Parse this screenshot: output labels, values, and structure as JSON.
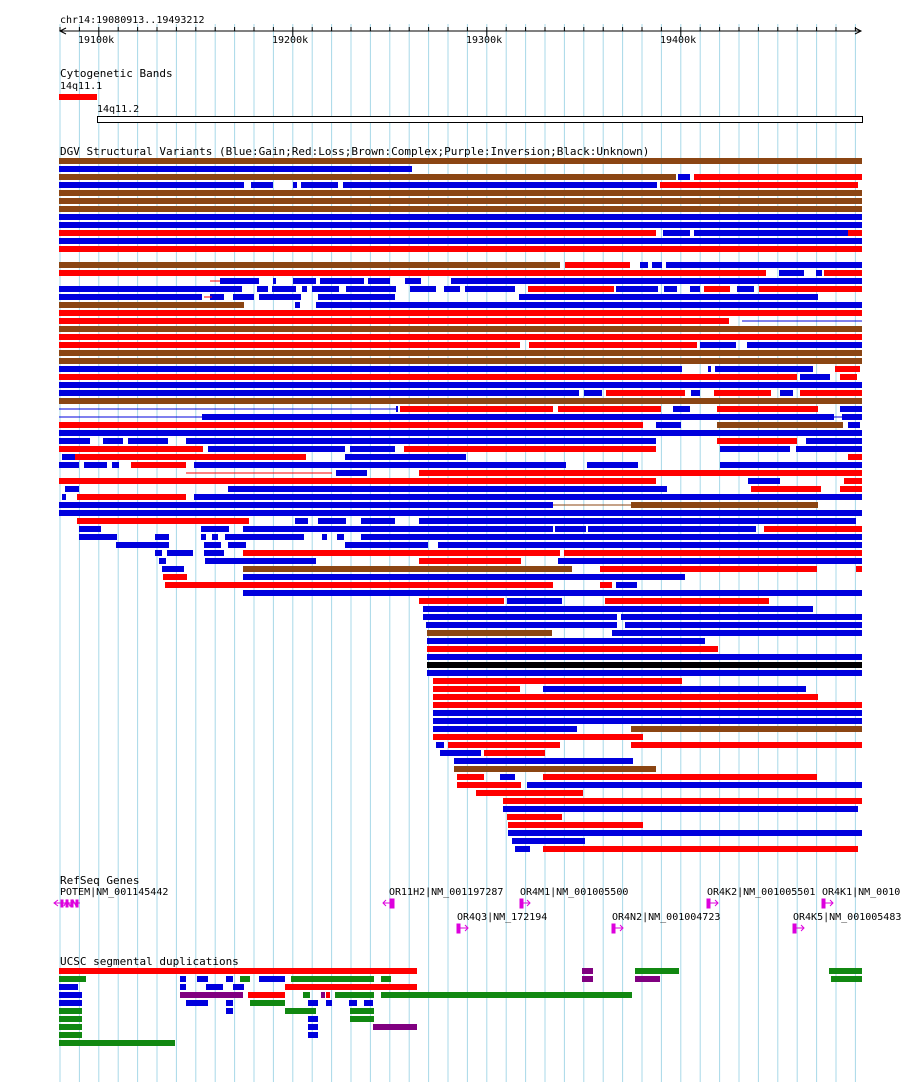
{
  "ruler": {
    "location": "chr14:19080913..19493212",
    "ticks": [
      "19100k",
      "19200k",
      "19300k",
      "19400k"
    ]
  },
  "tracks": {
    "cytoband": {
      "title": "Cytogenetic Bands",
      "bands": [
        "14q11.1",
        "14q11.2"
      ]
    },
    "dgv": {
      "title": "DGV Structural Variants (Blue:Gain;Red:Loss;Brown:Complex;Purple:Inversion;Black:Unknown)"
    },
    "refseq": {
      "title": "RefSeq Genes",
      "genes": [
        {
          "label": "POTEM|NM_001145442",
          "strand": "-"
        },
        {
          "label": "OR11H2|NM_001197287",
          "strand": "-"
        },
        {
          "label": "OR4M1|NM_001005500",
          "strand": "+"
        },
        {
          "label": "OR4K2|NM_001005501",
          "strand": "+"
        },
        {
          "label": "OR4K1|NM_0010",
          "strand": "+"
        },
        {
          "label": "OR4Q3|NM_172194",
          "strand": "+"
        },
        {
          "label": "OR4N2|NM_001004723",
          "strand": "+"
        },
        {
          "label": "OR4K5|NM_001005483",
          "strand": "+"
        }
      ]
    },
    "segdup": {
      "title": "UCSC segmental duplications"
    }
  },
  "colors": {
    "gain": "#0000dd",
    "loss": "#ff0000",
    "complex": "#8b4513",
    "inversion": "#800080",
    "unknown": "#000000",
    "segdup_green": "#118811",
    "gene": "#dd00dd",
    "grid": "#a8d8e8"
  }
}
